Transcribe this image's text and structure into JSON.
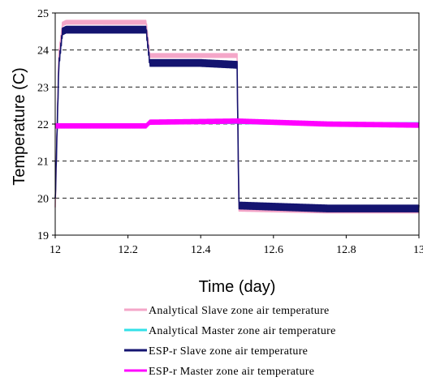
{
  "chart_data": {
    "type": "line",
    "xlabel": "Time (day)",
    "ylabel": "Temperature (C)",
    "xlim": [
      12,
      13
    ],
    "ylim": [
      19,
      25
    ],
    "xticks": [
      "12",
      "12.2",
      "12.4",
      "12.6",
      "12.8",
      "13"
    ],
    "yticks": [
      "19",
      "20",
      "21",
      "22",
      "23",
      "24",
      "25"
    ],
    "grid": "horizontal dashed",
    "legend_position": "bottom",
    "series": [
      {
        "name": "Analytical Slave zone air temperature",
        "color": "#f4a6c8",
        "x": [
          12.0,
          12.01,
          12.02,
          12.03,
          12.1,
          12.25,
          12.26,
          12.4,
          12.5,
          12.505,
          12.75,
          13.0
        ],
        "values": [
          19.7,
          23.9,
          24.7,
          24.75,
          24.75,
          24.75,
          23.85,
          23.85,
          23.85,
          19.7,
          19.65,
          19.65
        ],
        "band": 0.1
      },
      {
        "name": "Analytical Master zone air temperature",
        "color": "#33e0e8",
        "x": [
          12.0,
          12.01,
          12.25,
          12.26,
          12.5,
          12.75,
          13.0
        ],
        "values": [
          21.95,
          21.95,
          21.95,
          22.05,
          22.05,
          22.0,
          22.0
        ],
        "band": 0.08
      },
      {
        "name": "ESP-r Slave zone air temperature",
        "color": "#141470",
        "x": [
          12.0,
          12.01,
          12.02,
          12.03,
          12.1,
          12.25,
          12.26,
          12.4,
          12.5,
          12.505,
          12.75,
          13.0
        ],
        "values": [
          19.9,
          23.6,
          24.5,
          24.55,
          24.55,
          24.55,
          23.65,
          23.65,
          23.6,
          19.8,
          19.72,
          19.72
        ],
        "band": 0.18
      },
      {
        "name": "ESP-r Master zone air temperature",
        "color": "#ff00ff",
        "x": [
          12.0,
          12.01,
          12.25,
          12.26,
          12.5,
          12.75,
          13.0
        ],
        "values": [
          21.95,
          21.95,
          21.95,
          22.05,
          22.08,
          22.0,
          21.97
        ],
        "band": 0.12
      }
    ]
  }
}
